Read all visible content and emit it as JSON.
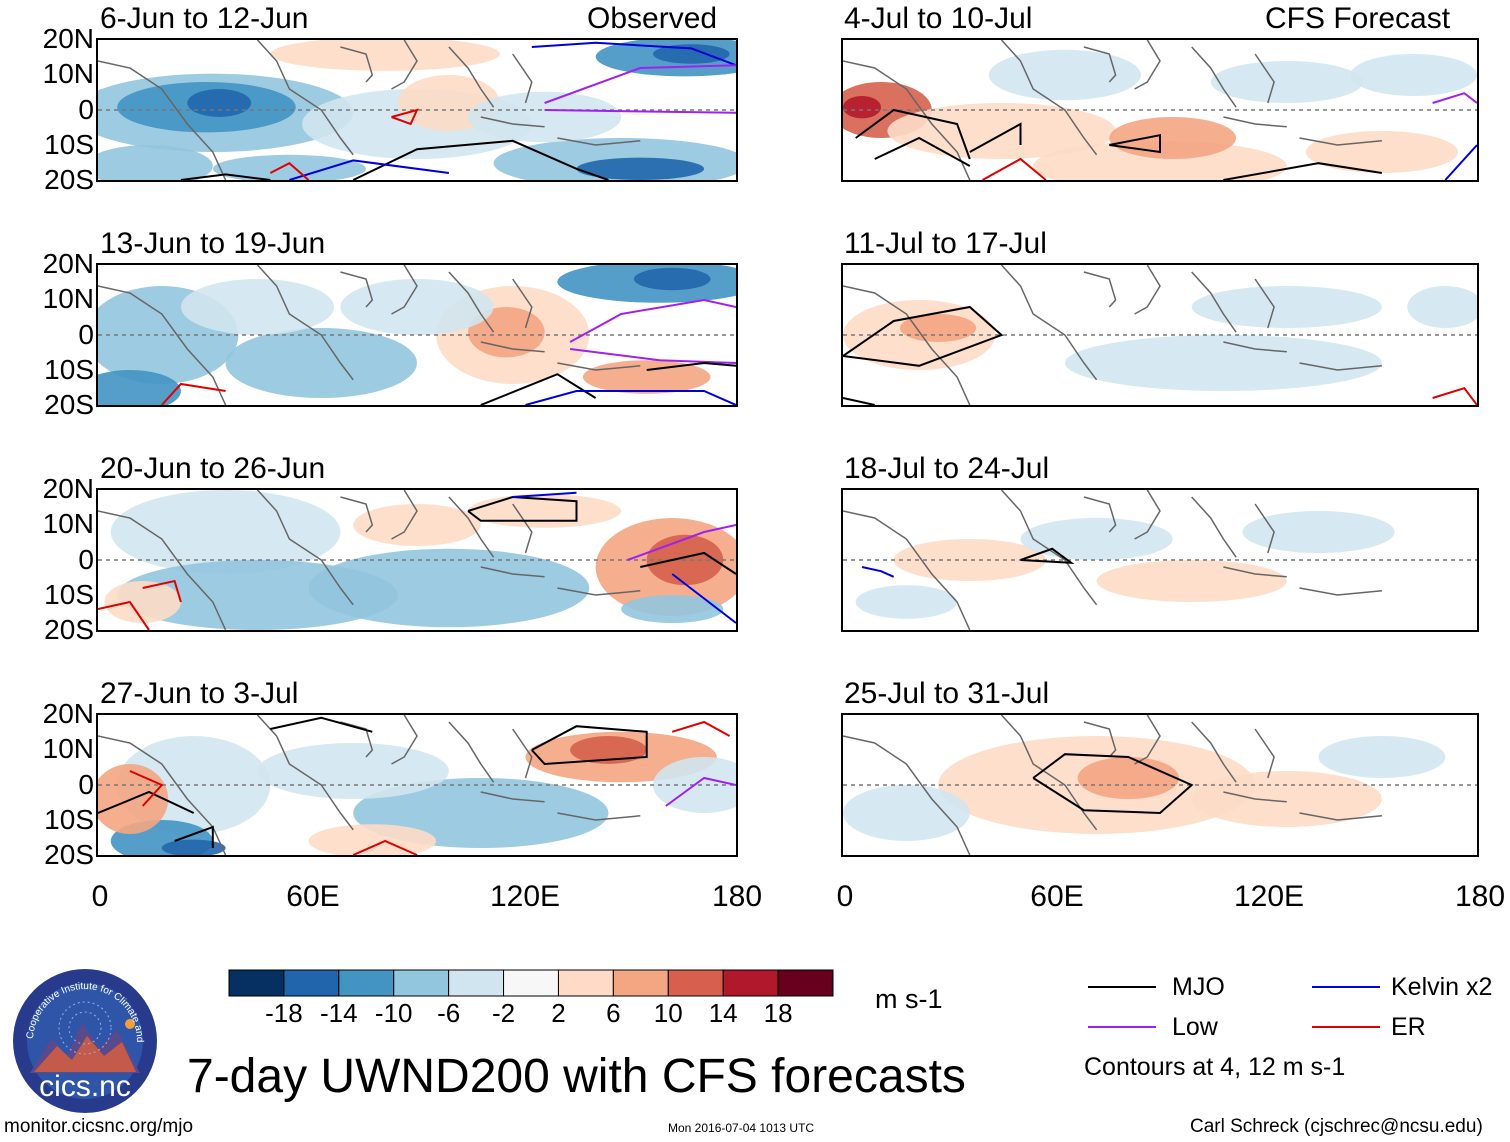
{
  "chart_data": {
    "type": "heatmap",
    "title": "7-day UWND200 with CFS forecasts",
    "variable": "200-hPa zonal wind anomaly",
    "units": "m s-1",
    "xlim": [
      0,
      180
    ],
    "ylim": [
      -20,
      20
    ],
    "x_ticks": [
      "0",
      "60E",
      "120E",
      "180"
    ],
    "y_ticks": [
      "20N",
      "10N",
      "0",
      "10S",
      "20S"
    ],
    "left_column_label": "Observed",
    "right_column_label": "CFS Forecast",
    "left_panels": [
      {
        "title": "6-Jun to 12-Jun"
      },
      {
        "title": "13-Jun to 19-Jun"
      },
      {
        "title": "20-Jun to 26-Jun"
      },
      {
        "title": "27-Jun to 3-Jul"
      }
    ],
    "right_panels": [
      {
        "title": "4-Jul to 10-Jul"
      },
      {
        "title": "11-Jul to 17-Jul"
      },
      {
        "title": "18-Jul to 24-Jul"
      },
      {
        "title": "25-Jul to 31-Jul"
      }
    ],
    "colorbar": {
      "labels": [
        "-18",
        "-14",
        "-10",
        "-6",
        "-2",
        "2",
        "6",
        "10",
        "14",
        "18"
      ],
      "colors": [
        "#053061",
        "#2166ac",
        "#4393c3",
        "#92c5de",
        "#d1e5f0",
        "#f7f7f7",
        "#fddbc7",
        "#f4a582",
        "#d6604d",
        "#b2182b",
        "#67001f"
      ],
      "units": "m s-1"
    },
    "legend": {
      "items": [
        {
          "label": "MJO",
          "color": "#000000"
        },
        {
          "label": "Kelvin x2",
          "color": "#0000dd"
        },
        {
          "label": "Low",
          "color": "#a020f0"
        },
        {
          "label": "ER",
          "color": "#e00000"
        }
      ],
      "note": "Contours at 4, 12 m s-1"
    }
  },
  "footer": {
    "website": "monitor.cicsnc.org/mjo",
    "timestamp": "Mon 2016-07-04 1013 UTC",
    "author": "Carl Schreck (cjschrec@ncsu.edu)"
  },
  "logo": {
    "text": "cics.nc",
    "ring_text": "Cooperative Institute for Climate and Satellites"
  }
}
